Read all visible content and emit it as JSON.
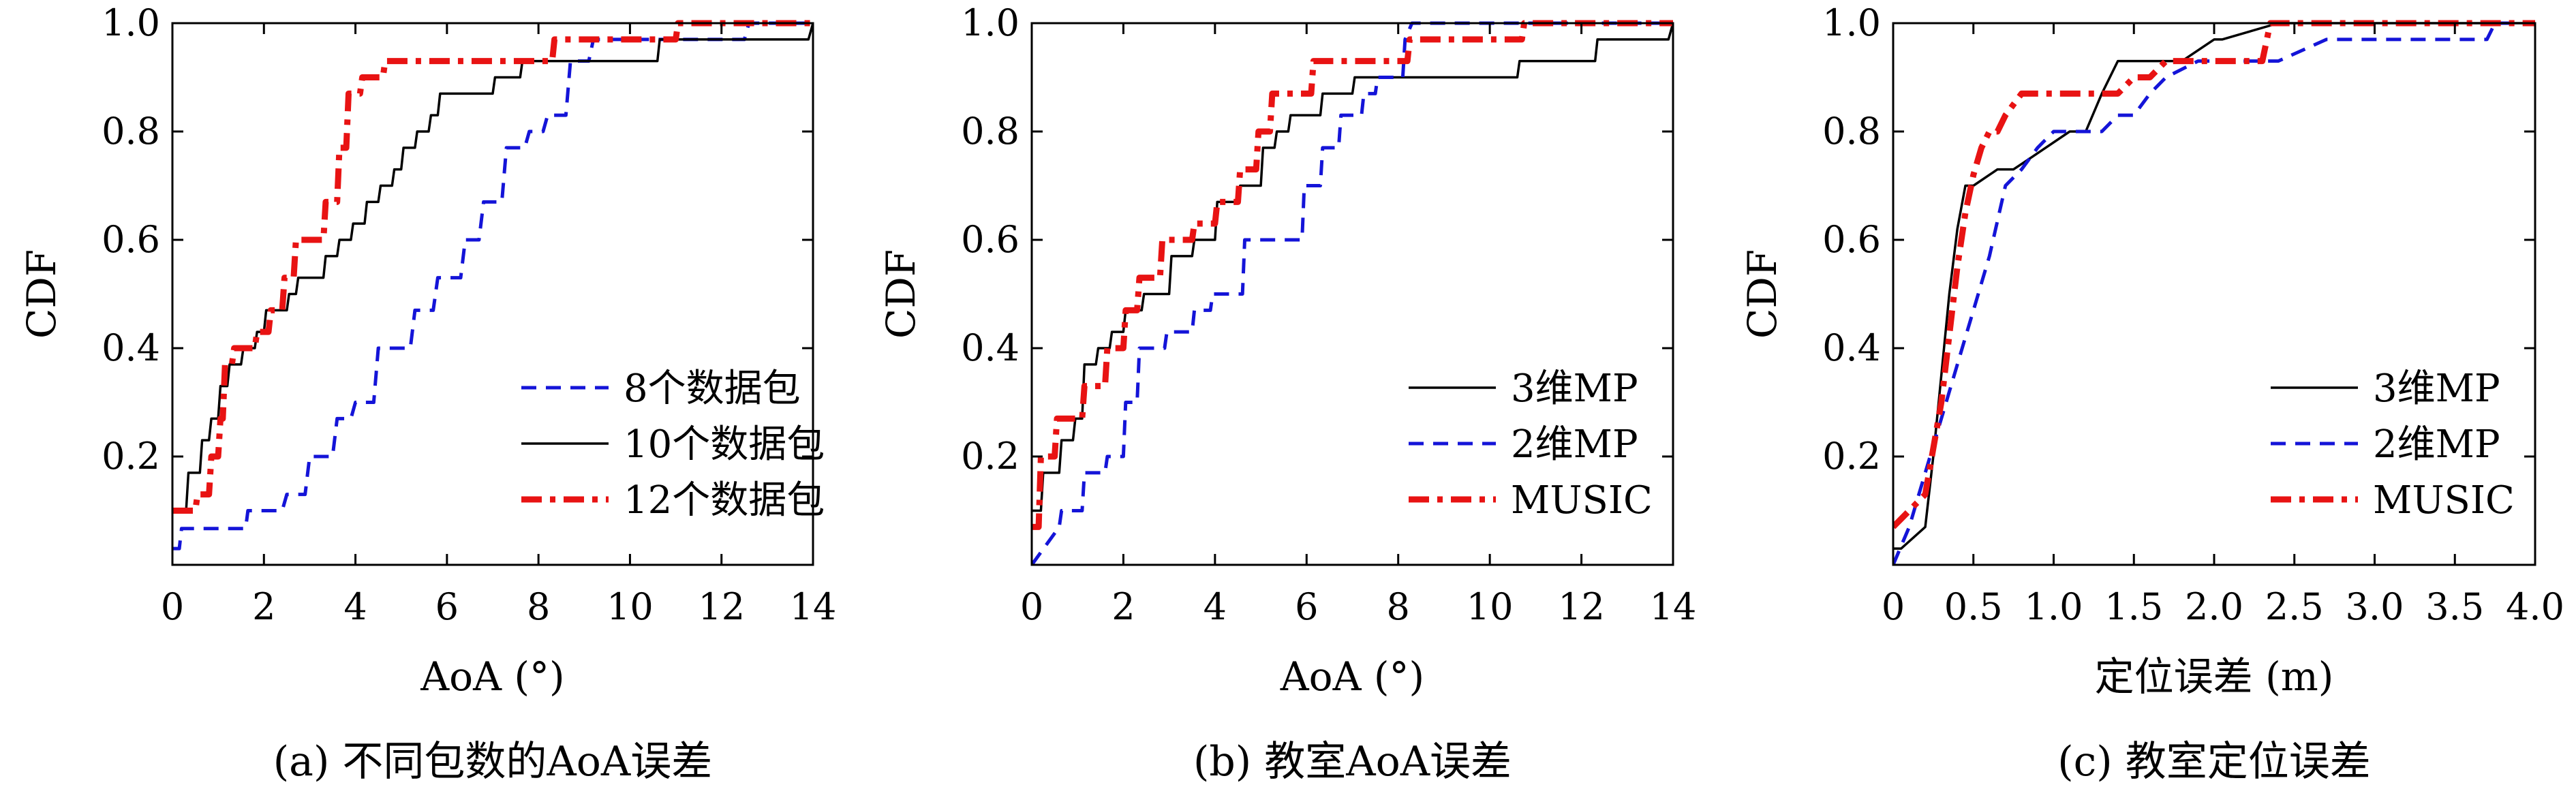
{
  "chart_data": [
    {
      "type": "line",
      "caption": "(a) 不同包数的AoA误差",
      "xlabel": "AoA (°)",
      "ylabel": "CDF",
      "xlim": [
        0,
        14
      ],
      "ylim": [
        0,
        1
      ],
      "xticks": [
        "0",
        "2",
        "4",
        "6",
        "8",
        "10",
        "12",
        "14"
      ],
      "yticks": [
        "0.2",
        "0.4",
        "0.6",
        "0.8",
        "1.0"
      ],
      "legend": "bottom-right",
      "series": [
        {
          "name": "8个数据包",
          "color": "#1414d8",
          "dash": "dashed",
          "x": [
            0,
            0.15,
            0.2,
            1.6,
            1.65,
            2.4,
            2.5,
            2.9,
            3.0,
            3.5,
            3.6,
            3.9,
            4.0,
            4.4,
            4.5,
            5.2,
            5.3,
            5.7,
            5.8,
            6.3,
            6.4,
            6.7,
            6.8,
            7.2,
            7.3,
            7.7,
            7.8,
            8.1,
            8.2,
            8.6,
            8.7,
            9.1,
            9.2,
            12.5,
            12.6,
            14
          ],
          "y": [
            0.03,
            0.03,
            0.067,
            0.067,
            0.1,
            0.1,
            0.13,
            0.13,
            0.2,
            0.2,
            0.27,
            0.27,
            0.3,
            0.3,
            0.4,
            0.4,
            0.47,
            0.47,
            0.53,
            0.53,
            0.6,
            0.6,
            0.67,
            0.67,
            0.77,
            0.77,
            0.8,
            0.8,
            0.83,
            0.83,
            0.93,
            0.93,
            0.97,
            0.97,
            1.0,
            1.0
          ]
        },
        {
          "name": "10个数据包",
          "color": "#000000",
          "dash": "solid",
          "x": [
            0,
            0.3,
            0.35,
            0.6,
            0.65,
            0.8,
            0.85,
            1.0,
            1.05,
            1.2,
            1.25,
            1.5,
            1.55,
            1.8,
            1.85,
            2.0,
            2.05,
            2.5,
            2.55,
            2.7,
            2.75,
            3.3,
            3.35,
            3.6,
            3.65,
            3.9,
            3.95,
            4.2,
            4.25,
            4.5,
            4.55,
            4.8,
            4.85,
            5.0,
            5.05,
            5.3,
            5.35,
            5.6,
            5.65,
            5.8,
            5.85,
            7.0,
            7.05,
            7.6,
            7.65,
            8.3,
            8.35,
            10.6,
            10.65,
            12.2,
            12.25,
            13.9,
            14
          ],
          "y": [
            0.1,
            0.1,
            0.17,
            0.17,
            0.23,
            0.23,
            0.27,
            0.27,
            0.33,
            0.33,
            0.37,
            0.37,
            0.4,
            0.4,
            0.43,
            0.43,
            0.47,
            0.47,
            0.5,
            0.5,
            0.53,
            0.53,
            0.57,
            0.57,
            0.6,
            0.6,
            0.63,
            0.63,
            0.67,
            0.67,
            0.7,
            0.7,
            0.73,
            0.73,
            0.77,
            0.77,
            0.8,
            0.8,
            0.83,
            0.83,
            0.87,
            0.87,
            0.9,
            0.9,
            0.93,
            0.93,
            0.93,
            0.93,
            0.97,
            0.97,
            0.97,
            0.97,
            1.0
          ]
        },
        {
          "name": "12个数据包",
          "color": "#e81313",
          "dash": "dashdot",
          "x": [
            0,
            0.5,
            0.55,
            0.8,
            0.85,
            1.0,
            1.05,
            1.1,
            1.15,
            1.3,
            1.35,
            1.8,
            1.85,
            2.1,
            2.15,
            2.4,
            2.45,
            2.65,
            2.7,
            3.3,
            3.35,
            3.6,
            3.65,
            3.8,
            3.85,
            4.1,
            4.15,
            4.6,
            4.65,
            5.0,
            5.05,
            8.3,
            8.35,
            11.0,
            11.05,
            14
          ],
          "y": [
            0.1,
            0.1,
            0.13,
            0.13,
            0.2,
            0.2,
            0.27,
            0.27,
            0.37,
            0.37,
            0.4,
            0.4,
            0.43,
            0.43,
            0.47,
            0.47,
            0.53,
            0.53,
            0.6,
            0.6,
            0.67,
            0.67,
            0.77,
            0.77,
            0.87,
            0.87,
            0.9,
            0.9,
            0.93,
            0.93,
            0.93,
            0.93,
            0.97,
            0.97,
            1.0,
            1.0
          ]
        }
      ]
    },
    {
      "type": "line",
      "caption": "(b) 教室AoA误差",
      "xlabel": "AoA (°)",
      "ylabel": "CDF",
      "xlim": [
        0,
        14
      ],
      "ylim": [
        0,
        1
      ],
      "xticks": [
        "0",
        "2",
        "4",
        "6",
        "8",
        "10",
        "12",
        "14"
      ],
      "yticks": [
        "0.2",
        "0.4",
        "0.6",
        "0.8",
        "1.0"
      ],
      "legend": "bottom-right",
      "series": [
        {
          "name": "3维MP",
          "color": "#000000",
          "dash": "solid",
          "x": [
            0,
            0.2,
            0.25,
            0.6,
            0.65,
            0.9,
            0.95,
            1.1,
            1.15,
            1.4,
            1.45,
            1.7,
            1.75,
            2.0,
            2.05,
            2.4,
            2.45,
            3.0,
            3.05,
            3.5,
            3.55,
            4.0,
            4.05,
            4.5,
            4.55,
            5.0,
            5.05,
            5.3,
            5.35,
            5.6,
            5.65,
            6.3,
            6.35,
            7.0,
            7.05,
            7.6,
            7.65,
            10.6,
            10.65,
            12.3,
            12.35,
            13.9,
            14
          ],
          "y": [
            0.1,
            0.1,
            0.17,
            0.17,
            0.23,
            0.23,
            0.27,
            0.27,
            0.37,
            0.37,
            0.4,
            0.4,
            0.43,
            0.43,
            0.47,
            0.47,
            0.5,
            0.5,
            0.57,
            0.57,
            0.6,
            0.6,
            0.67,
            0.67,
            0.7,
            0.7,
            0.77,
            0.77,
            0.8,
            0.8,
            0.83,
            0.83,
            0.87,
            0.87,
            0.9,
            0.9,
            0.9,
            0.9,
            0.93,
            0.93,
            0.97,
            0.97,
            1.0
          ]
        },
        {
          "name": "2维MP",
          "color": "#1414d8",
          "dash": "dashed",
          "x": [
            0,
            0.6,
            0.65,
            1.1,
            1.15,
            1.6,
            1.65,
            2.0,
            2.05,
            2.3,
            2.35,
            2.9,
            2.95,
            3.5,
            3.55,
            3.9,
            3.95,
            4.6,
            4.65,
            5.0,
            5.05,
            5.9,
            5.95,
            6.3,
            6.35,
            6.7,
            6.75,
            7.2,
            7.25,
            7.5,
            7.55,
            8.1,
            8.15,
            8.3,
            14
          ],
          "y": [
            0.0,
            0.07,
            0.1,
            0.1,
            0.17,
            0.17,
            0.2,
            0.2,
            0.3,
            0.3,
            0.4,
            0.4,
            0.43,
            0.43,
            0.47,
            0.47,
            0.5,
            0.5,
            0.6,
            0.6,
            0.6,
            0.6,
            0.7,
            0.7,
            0.77,
            0.77,
            0.83,
            0.83,
            0.87,
            0.87,
            0.9,
            0.9,
            0.97,
            1.0,
            1.0
          ]
        },
        {
          "name": "MUSIC",
          "color": "#e81313",
          "dash": "dashdot",
          "x": [
            0,
            0.15,
            0.2,
            0.5,
            0.55,
            1.1,
            1.15,
            1.6,
            1.65,
            2.0,
            2.05,
            2.3,
            2.35,
            2.8,
            2.85,
            3.5,
            3.55,
            4.0,
            4.05,
            4.5,
            4.55,
            4.9,
            4.95,
            5.2,
            5.25,
            5.5,
            5.55,
            6.1,
            6.15,
            8.2,
            8.25,
            10.7,
            10.75,
            14
          ],
          "y": [
            0.07,
            0.07,
            0.2,
            0.2,
            0.27,
            0.27,
            0.33,
            0.33,
            0.4,
            0.4,
            0.47,
            0.47,
            0.53,
            0.53,
            0.6,
            0.6,
            0.63,
            0.63,
            0.67,
            0.67,
            0.73,
            0.73,
            0.8,
            0.8,
            0.87,
            0.87,
            0.87,
            0.87,
            0.93,
            0.93,
            0.97,
            0.97,
            1.0,
            1.0
          ]
        }
      ]
    },
    {
      "type": "line",
      "caption": "(c) 教室定位误差",
      "xlabel": "定位误差 (m)",
      "ylabel": "CDF",
      "xlim": [
        0,
        4
      ],
      "ylim": [
        0,
        1
      ],
      "xticks": [
        "0",
        "0.5",
        "1.0",
        "1.5",
        "2.0",
        "2.5",
        "3.0",
        "3.5",
        "4.0"
      ],
      "yticks": [
        "0.2",
        "0.4",
        "0.6",
        "0.8",
        "1.0"
      ],
      "legend": "bottom-right",
      "series": [
        {
          "name": "3维MP",
          "color": "#000000",
          "dash": "solid",
          "x": [
            0,
            0.05,
            0.2,
            0.25,
            0.3,
            0.35,
            0.4,
            0.45,
            0.5,
            0.6,
            0.65,
            0.75,
            0.85,
            0.95,
            1.1,
            1.2,
            1.3,
            1.4,
            1.5,
            1.7,
            1.8,
            2.0,
            2.05,
            2.4,
            3.0,
            3.8,
            3.85,
            4.0
          ],
          "y": [
            0.03,
            0.03,
            0.07,
            0.2,
            0.35,
            0.5,
            0.62,
            0.7,
            0.7,
            0.72,
            0.73,
            0.73,
            0.75,
            0.77,
            0.8,
            0.8,
            0.87,
            0.93,
            0.93,
            0.93,
            0.93,
            0.97,
            0.97,
            1.0,
            1.0,
            1.0,
            1.0,
            1.0
          ]
        },
        {
          "name": "2维MP",
          "color": "#1414d8",
          "dash": "dashed",
          "x": [
            0,
            0.1,
            0.2,
            0.3,
            0.4,
            0.5,
            0.6,
            0.7,
            0.8,
            0.9,
            1.0,
            1.1,
            1.3,
            1.4,
            1.5,
            1.6,
            1.7,
            1.9,
            2.0,
            2.3,
            2.4,
            2.7,
            3.0,
            3.3,
            3.6,
            3.7,
            3.75,
            4.0
          ],
          "y": [
            0.0,
            0.07,
            0.17,
            0.27,
            0.37,
            0.47,
            0.57,
            0.7,
            0.73,
            0.77,
            0.8,
            0.8,
            0.8,
            0.83,
            0.83,
            0.87,
            0.9,
            0.93,
            0.93,
            0.93,
            0.93,
            0.97,
            0.97,
            0.97,
            0.97,
            0.97,
            1.0,
            1.0
          ]
        },
        {
          "name": "MUSIC",
          "color": "#e81313",
          "dash": "dashdot",
          "x": [
            0,
            0.1,
            0.2,
            0.3,
            0.4,
            0.45,
            0.5,
            0.55,
            0.6,
            0.65,
            0.7,
            0.8,
            1.0,
            1.3,
            1.4,
            1.5,
            1.6,
            1.7,
            2.0,
            2.3,
            2.35,
            3.0,
            3.5,
            4.0
          ],
          "y": [
            0.07,
            0.1,
            0.13,
            0.3,
            0.55,
            0.65,
            0.72,
            0.77,
            0.8,
            0.8,
            0.83,
            0.87,
            0.87,
            0.87,
            0.87,
            0.9,
            0.9,
            0.93,
            0.93,
            0.93,
            1.0,
            1.0,
            1.0,
            1.0
          ]
        }
      ]
    }
  ]
}
